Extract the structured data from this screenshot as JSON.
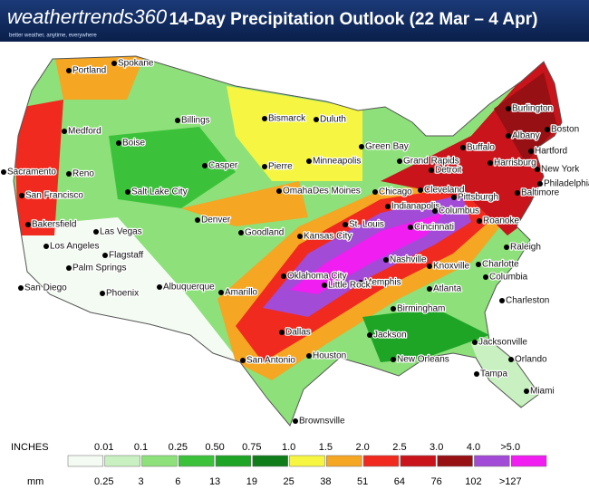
{
  "header": {
    "logo": "weathertrends360",
    "tagline": "better weather, anytime, everywhere",
    "title": "14-Day Precipitation Outlook (22 Mar – 4 Apr)"
  },
  "map": {
    "cities": [
      "Portland",
      "Spokane",
      "Medford",
      "Billings",
      "Bismarck",
      "Duluth",
      "Burlington",
      "Boston",
      "Albany",
      "Hartford",
      "Green Bay",
      "Boise",
      "Minneapolis",
      "Grand Rapids",
      "Buffalo",
      "Pierre",
      "Casper",
      "Reno",
      "Sacramento",
      "Detroit",
      "Harrisburg",
      "New York",
      "Philadelphia",
      "Salt Lake City",
      "San Francisco",
      "Des Moines",
      "Omaha",
      "Chicago",
      "Cleveland",
      "Pittsburgh",
      "Baltimore",
      "Denver",
      "Indianapolis",
      "Columbus",
      "Bakersfield",
      "Las Vegas",
      "Goodland",
      "Kansas City",
      "St. Louis",
      "Cincinnati",
      "Roanoke",
      "Raleigh",
      "Los Angeles",
      "Flagstaff",
      "Nashville",
      "Knoxville",
      "Charlotte",
      "Palm Springs",
      "Albuquerque",
      "Oklahoma City",
      "Memphis",
      "Columbia",
      "San Diego",
      "Phoenix",
      "Amarillo",
      "Little Rock",
      "Atlanta",
      "Charleston",
      "Birmingham",
      "Dallas",
      "Jackson",
      "Jacksonville",
      "New Orleans",
      "Houston",
      "San Antonio",
      "Orlando",
      "Tampa",
      "Miami",
      "Brownsville"
    ]
  },
  "legend": {
    "inches_title": "INCHES",
    "inches": [
      "0.01",
      "0.1",
      "0.25",
      "0.50",
      "0.75",
      "1.0",
      "1.5",
      "2.0",
      "2.5",
      "3.0",
      "4.0",
      ">5.0"
    ],
    "mm_title": "mm",
    "mm": [
      "0.25",
      "3",
      "6",
      "13",
      "19",
      "25",
      "38",
      "51",
      "64",
      "76",
      "102",
      ">127"
    ],
    "colors": [
      "#f4fbf2",
      "#c8f0c0",
      "#8de07a",
      "#3cc23a",
      "#1fa526",
      "#0f7d1a",
      "#f5f542",
      "#f5a623",
      "#f02a1e",
      "#c8141a",
      "#961014",
      "#a24bd6",
      "#f01ef0"
    ]
  }
}
